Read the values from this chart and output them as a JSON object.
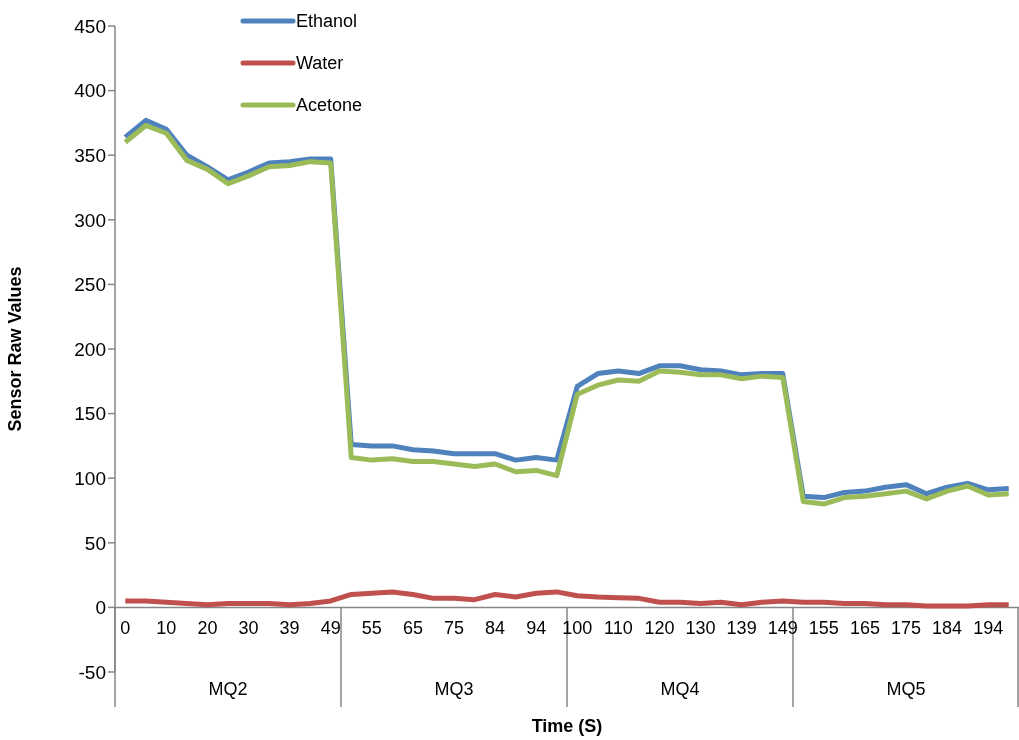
{
  "chart_data": {
    "type": "line",
    "xlabel": "Time (S)",
    "ylabel": "Sensor Raw Values",
    "categories": [
      "0",
      null,
      "10",
      null,
      "20",
      null,
      "30",
      null,
      "39",
      null,
      "49",
      null,
      "55",
      null,
      "65",
      null,
      "75",
      null,
      "84",
      null,
      "94",
      null,
      "100",
      null,
      "110",
      null,
      "120",
      null,
      "130",
      null,
      "139",
      null,
      "149",
      null,
      "155",
      null,
      "165",
      null,
      "175",
      null,
      "184",
      null,
      "194",
      null
    ],
    "annotations": [
      "MQ2",
      "MQ3",
      "MQ4",
      "MQ5"
    ],
    "series": [
      {
        "name": "Ethanol",
        "color": "#4f81bd",
        "values": [
          364,
          377,
          370,
          350,
          341,
          331,
          337,
          344,
          345,
          347,
          347,
          126,
          125,
          125,
          122,
          121,
          119,
          119,
          119,
          114,
          116,
          114,
          171,
          181,
          183,
          181,
          187,
          187,
          184,
          183,
          180,
          181,
          181,
          86,
          85,
          89,
          90,
          93,
          95,
          88,
          93,
          96,
          91,
          92
        ]
      },
      {
        "name": "Water",
        "color": "#c0504d",
        "values": [
          5,
          5,
          4,
          3,
          2,
          3,
          3,
          3,
          2,
          3,
          5,
          10,
          11,
          12,
          10,
          7,
          7,
          6,
          10,
          8,
          11,
          12,
          9,
          8,
          7.5,
          7,
          4,
          4,
          3,
          4,
          2,
          4,
          5,
          4,
          4,
          3,
          3,
          2,
          2,
          1,
          1,
          1,
          2,
          2
        ]
      },
      {
        "name": "Acetone",
        "color": "#9bbb59",
        "values": [
          360,
          373,
          367,
          346,
          339,
          328,
          334,
          341,
          342,
          345,
          344,
          116,
          114,
          115,
          113,
          113,
          111,
          109,
          111,
          105,
          106,
          102,
          165,
          172,
          176,
          175,
          183,
          182,
          180,
          180,
          177,
          179,
          178,
          82,
          80,
          85,
          86,
          88,
          90,
          84,
          90,
          94,
          87,
          88
        ]
      }
    ],
    "ylim": [
      -50,
      450
    ],
    "yticks": [
      -50,
      0,
      50,
      100,
      150,
      200,
      250,
      300,
      350,
      400,
      450
    ],
    "grid": false,
    "legend": "top left",
    "marker": "none",
    "line_style": "solid"
  }
}
